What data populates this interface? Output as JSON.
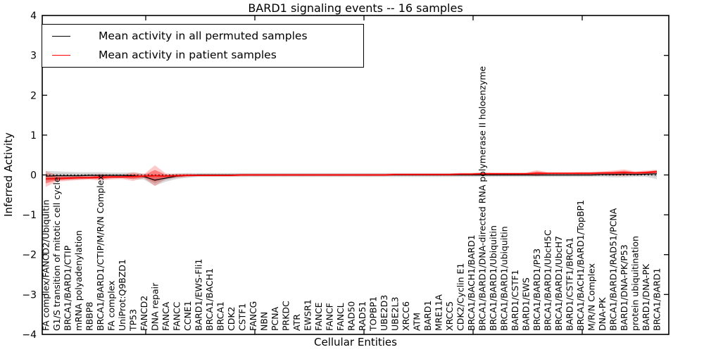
{
  "title": "BARD1 signaling events -- 16 samples",
  "legend": {
    "items": [
      {
        "label": "Mean activity in all permuted samples",
        "color": "#000000"
      },
      {
        "label": "Mean activity in patient samples",
        "color": "#ff0000"
      }
    ]
  },
  "chart_data": {
    "type": "line",
    "title": "BARD1 signaling events -- 16 samples",
    "xlabel": "Cellular Entities",
    "ylabel": "Inferred Activity",
    "ylim": [
      -4,
      4
    ],
    "yticks": [
      4,
      3,
      2,
      1,
      0,
      -1,
      -2,
      -3,
      -4
    ],
    "grid": false,
    "legend_position": "upper-left",
    "zero_line_style": "dotted",
    "categories": [
      "FA complex/FANCD2/Ubiquitin",
      "G1/S transition of mitotic cell cycle",
      "BRCA1/BARD1/CTIP",
      "mRNA polyadenylation",
      "RBBP8",
      "BRCA1/BARD1/CTIP/M/R/N Complex",
      "FA complex",
      "UniProt:Q9BZD1",
      "TP53",
      "FANCD2",
      "DNA repair",
      "FANCA",
      "FANCC",
      "CCNE1",
      "BARD1/EWS-Fli1",
      "BRCA1/BACH1",
      "BRCA1",
      "CDK2",
      "CSTF1",
      "FANCG",
      "NBN",
      "PCNA",
      "PRKDC",
      "ATR",
      "EWSR1",
      "FANCE",
      "FANCF",
      "FANCL",
      "RAD50",
      "RAD51",
      "TOPBP1",
      "UBE2D3",
      "UBE2L3",
      "XRCC6",
      "ATM",
      "BARD1",
      "MRE11A",
      "XRCC5",
      "CDK2/Cyclin E1",
      "BRCA1/BACH1/BARD1",
      "BRCA1/BARD1/DNA-directed RNA polymerase II holoenzyme",
      "BRCA1/BARD1/Ubiquitin",
      "BRCA1/BARD1/ubiquitin",
      "BARD1/CSTF1",
      "BARD1/EWS",
      "BRCA1/BARD1/P53",
      "BRCA1/BARD1/UbcH5C",
      "BRCA1/BARD1/UbcH7",
      "BARD1/CSTF1/BRCA1",
      "BRCA1/BACH1/BARD1/TopBP1",
      "M/R/N Complex",
      "DNA-PK",
      "BRCA1/BARD1/RAD51/PCNA",
      "BARD1/DNA-PK/P53",
      "protein ubiquitination",
      "BARD1/DNA-PK",
      "BRCA1/BARD1"
    ],
    "series": [
      {
        "name": "Mean activity in all permuted samples",
        "color": "#000000",
        "band_color": "#909090",
        "mean": [
          -0.03,
          -0.02,
          -0.02,
          -0.02,
          -0.01,
          -0.01,
          -0.01,
          -0.01,
          -0.02,
          -0.04,
          -0.13,
          -0.08,
          -0.03,
          -0.01,
          0,
          0,
          0,
          0,
          0,
          0,
          0,
          0,
          0,
          0,
          0,
          0,
          0,
          0,
          0,
          0,
          0,
          0,
          0,
          0,
          0,
          0,
          0,
          0,
          0,
          0,
          0,
          0,
          0,
          0,
          0,
          0,
          0,
          0,
          0,
          0,
          0,
          0.01,
          0.01,
          0.02,
          0.01,
          0.02,
          0.03
        ],
        "band_hi": [
          0.1,
          0.09,
          0.08,
          0.07,
          0.07,
          0.07,
          0.06,
          0.06,
          0.06,
          0.04,
          0.01,
          0.01,
          0.04,
          0.05,
          0.05,
          0.05,
          0.05,
          0.05,
          0.05,
          0.05,
          0.05,
          0.05,
          0.05,
          0.05,
          0.05,
          0.05,
          0.05,
          0.05,
          0.05,
          0.05,
          0.05,
          0.05,
          0.05,
          0.05,
          0.05,
          0.05,
          0.05,
          0.05,
          0.05,
          0.05,
          0.05,
          0.05,
          0.05,
          0.05,
          0.05,
          0.05,
          0.05,
          0.05,
          0.05,
          0.05,
          0.05,
          0.06,
          0.07,
          0.09,
          0.07,
          0.08,
          0.12
        ],
        "band_lo": [
          -0.16,
          -0.13,
          -0.12,
          -0.11,
          -0.09,
          -0.09,
          -0.08,
          -0.08,
          -0.1,
          -0.12,
          -0.27,
          -0.17,
          -0.1,
          -0.07,
          -0.05,
          -0.05,
          -0.05,
          -0.05,
          -0.05,
          -0.05,
          -0.05,
          -0.05,
          -0.05,
          -0.05,
          -0.05,
          -0.05,
          -0.05,
          -0.05,
          -0.05,
          -0.05,
          -0.05,
          -0.05,
          -0.05,
          -0.05,
          -0.05,
          -0.05,
          -0.05,
          -0.05,
          -0.05,
          -0.05,
          -0.05,
          -0.05,
          -0.05,
          -0.05,
          -0.05,
          -0.05,
          -0.05,
          -0.05,
          -0.05,
          -0.05,
          -0.05,
          -0.05,
          -0.06,
          -0.06,
          -0.05,
          -0.05,
          -0.1
        ]
      },
      {
        "name": "Mean activity in patient samples",
        "color": "#ff0000",
        "band_color": "#ff2a2a",
        "mean": [
          -0.1,
          -0.09,
          -0.08,
          -0.07,
          -0.07,
          -0.06,
          -0.05,
          -0.05,
          -0.04,
          -0.03,
          -0.02,
          -0.03,
          -0.02,
          -0.01,
          -0.01,
          -0.01,
          -0.01,
          -0.01,
          0,
          0,
          0,
          0,
          0,
          0,
          0,
          0,
          0,
          0,
          0,
          0,
          0,
          0,
          0.01,
          0.01,
          0.01,
          0.01,
          0.01,
          0.01,
          0.02,
          0.02,
          0.03,
          0.03,
          0.03,
          0.03,
          0.03,
          0.04,
          0.04,
          0.04,
          0.04,
          0.04,
          0.04,
          0.05,
          0.05,
          0.06,
          0.05,
          0.06,
          0.08
        ],
        "band_hi": [
          0.1,
          -0.01,
          -0.02,
          -0.02,
          -0.02,
          0.02,
          0.0,
          0.0,
          0.07,
          0.02,
          0.24,
          0.04,
          0.03,
          0.03,
          0.02,
          0.02,
          0.02,
          0.02,
          0.03,
          0.03,
          0.03,
          0.03,
          0.03,
          0.03,
          0.03,
          0.03,
          0.03,
          0.03,
          0.03,
          0.03,
          0.03,
          0.03,
          0.04,
          0.04,
          0.04,
          0.04,
          0.04,
          0.04,
          0.05,
          0.05,
          0.07,
          0.06,
          0.06,
          0.06,
          0.06,
          0.12,
          0.07,
          0.07,
          0.07,
          0.08,
          0.08,
          0.09,
          0.11,
          0.14,
          0.09,
          0.11,
          0.13
        ],
        "band_lo": [
          -0.3,
          -0.17,
          -0.15,
          -0.13,
          -0.12,
          -0.14,
          -0.11,
          -0.1,
          -0.15,
          -0.08,
          -0.28,
          -0.1,
          -0.07,
          -0.05,
          -0.04,
          -0.04,
          -0.04,
          -0.04,
          -0.03,
          -0.03,
          -0.03,
          -0.03,
          -0.03,
          -0.03,
          -0.03,
          -0.03,
          -0.03,
          -0.03,
          -0.03,
          -0.03,
          -0.03,
          -0.03,
          -0.02,
          -0.02,
          -0.02,
          -0.02,
          -0.02,
          -0.02,
          -0.01,
          -0.01,
          -0.01,
          0.0,
          0.0,
          0.0,
          0.0,
          -0.03,
          0.01,
          0.01,
          0.01,
          0.0,
          0.0,
          0.01,
          -0.01,
          -0.03,
          0.01,
          0.01,
          0.02
        ]
      }
    ]
  }
}
